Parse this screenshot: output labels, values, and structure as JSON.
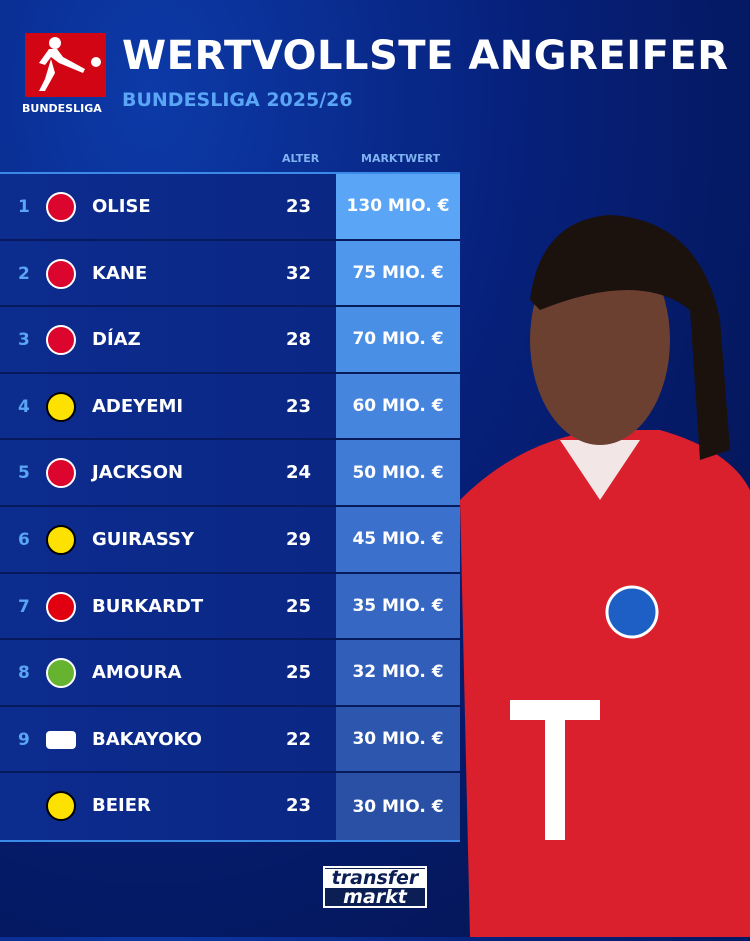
{
  "header": {
    "title": "WERTVOLLSTE ANGREIFER",
    "subtitle": "BUNDESLIGA 2025/26",
    "logo_text": "BUNDESLIGA"
  },
  "columns": {
    "age": "ALTER",
    "value": "MARKTWERT"
  },
  "colors": {
    "accent": "#5aa5f5",
    "bundesliga_red": "#d20515"
  },
  "rows": [
    {
      "rank": "1",
      "club": "FC Bayern",
      "name": "OLISE",
      "age": "23",
      "value": "130 MIO. €",
      "bg": "#5aa5f5"
    },
    {
      "rank": "2",
      "club": "FC Bayern",
      "name": "KANE",
      "age": "32",
      "value": "75 MIO. €",
      "bg": "#4f97ec"
    },
    {
      "rank": "3",
      "club": "FC Bayern",
      "name": "DÍAZ",
      "age": "28",
      "value": "70 MIO. €",
      "bg": "#4a8fe6"
    },
    {
      "rank": "4",
      "club": "Borussia Dortmund",
      "name": "ADEYEMI",
      "age": "23",
      "value": "60 MIO. €",
      "bg": "#4585de"
    },
    {
      "rank": "5",
      "club": "FC Bayern",
      "name": "JACKSON",
      "age": "24",
      "value": "50 MIO. €",
      "bg": "#407bd5"
    },
    {
      "rank": "6",
      "club": "Borussia Dortmund",
      "name": "GUIRASSY",
      "age": "29",
      "value": "45 MIO. €",
      "bg": "#3b71cc"
    },
    {
      "rank": "7",
      "club": "Eintracht Frankfurt",
      "name": "BURKARDT",
      "age": "25",
      "value": "35 MIO. €",
      "bg": "#3667c2"
    },
    {
      "rank": "8",
      "club": "VfL Wolfsburg",
      "name": "AMOURA",
      "age": "25",
      "value": "32 MIO. €",
      "bg": "#315eb8"
    },
    {
      "rank": "9",
      "club": "RB Leipzig",
      "name": "BAKAYOKO",
      "age": "22",
      "value": "30 MIO. €",
      "bg": "#2d56ae"
    },
    {
      "rank": "",
      "club": "Borussia Dortmund",
      "name": "BEIER",
      "age": "23",
      "value": "30 MIO. €",
      "bg": "#2a50a6"
    }
  ],
  "footer": {
    "brand_line1": "transfer",
    "brand_line2": "markt"
  }
}
